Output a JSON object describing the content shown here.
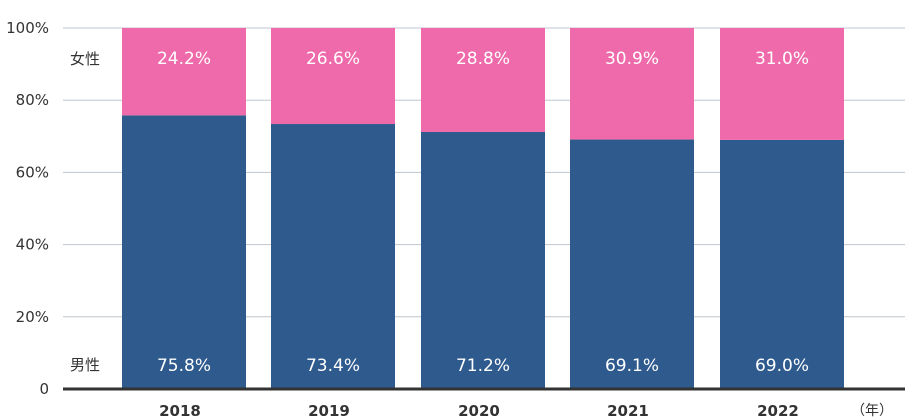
{
  "chart_data": {
    "type": "bar",
    "stacked": true,
    "categories": [
      "2018",
      "2019",
      "2020",
      "2021",
      "2022"
    ],
    "x_unit_label": "（年）",
    "y_ticks": [
      "0",
      "20%",
      "40%",
      "60%",
      "80%",
      "100%"
    ],
    "ylim": [
      0,
      100
    ],
    "grid": true,
    "series": [
      {
        "name": "男性",
        "color": "#2e5a8e",
        "values": [
          75.8,
          73.4,
          71.2,
          69.1,
          69.0
        ],
        "labels": [
          "75.8%",
          "73.4%",
          "71.2%",
          "69.1%",
          "69.0%"
        ]
      },
      {
        "name": "女性",
        "color": "#ef6aaa",
        "values": [
          24.2,
          26.6,
          28.8,
          30.9,
          31.0
        ],
        "labels": [
          "24.2%",
          "26.6%",
          "28.8%",
          "30.9%",
          "31.0%"
        ]
      }
    ]
  }
}
